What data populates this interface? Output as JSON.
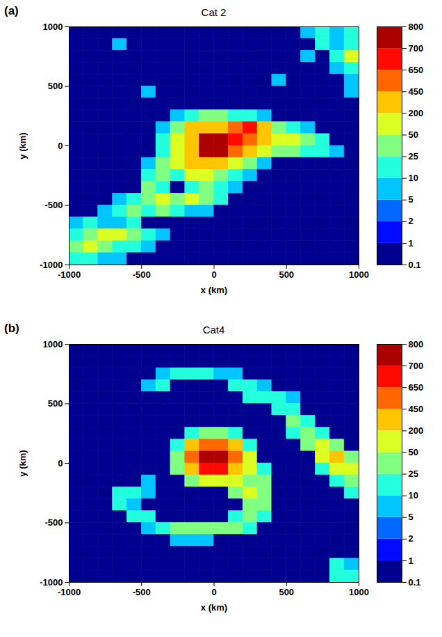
{
  "chart_data": [
    {
      "type": "heatmap",
      "panel": "(a)",
      "title": "Cat 2",
      "xlabel": "x (km)",
      "ylabel": "y (km)",
      "xlim": [
        -1000,
        1000
      ],
      "ylim": [
        -1000,
        1000
      ],
      "xticks": [
        -1000,
        -500,
        0,
        500,
        1000
      ],
      "yticks": [
        -1000,
        -500,
        0,
        500,
        1000
      ],
      "x": [
        -950,
        -850,
        -750,
        -650,
        -550,
        -450,
        -350,
        -250,
        -150,
        -50,
        50,
        150,
        250,
        350,
        450,
        550,
        650,
        750,
        850,
        950
      ],
      "y": [
        950,
        850,
        750,
        650,
        550,
        450,
        350,
        250,
        150,
        50,
        -50,
        -150,
        -250,
        -350,
        -450,
        -550,
        -650,
        -750,
        -850,
        -950
      ],
      "values": [
        [
          0.5,
          0.5,
          0.5,
          0.5,
          0.5,
          0.5,
          0.5,
          0.5,
          0.5,
          0.5,
          0.5,
          0.5,
          0.5,
          0.5,
          0.5,
          0.5,
          7,
          15,
          7,
          15
        ],
        [
          0.5,
          0.5,
          0.5,
          7,
          0.5,
          0.5,
          0.5,
          0.5,
          0.5,
          0.5,
          0.5,
          0.5,
          0.5,
          0.5,
          0.5,
          0.5,
          0.5,
          15,
          7,
          15
        ],
        [
          0.5,
          0.5,
          0.5,
          0.5,
          0.5,
          0.5,
          0.5,
          0.5,
          0.5,
          0.5,
          0.5,
          0.5,
          0.5,
          0.5,
          0.5,
          0.5,
          7,
          0.5,
          15,
          100
        ],
        [
          0.5,
          0.5,
          0.5,
          0.5,
          0.5,
          0.5,
          0.5,
          0.5,
          0.5,
          0.5,
          0.5,
          0.5,
          0.5,
          0.5,
          0.5,
          0.5,
          0.5,
          0.5,
          7,
          15
        ],
        [
          0.5,
          0.5,
          0.5,
          0.5,
          0.5,
          0.5,
          0.5,
          0.5,
          0.5,
          0.5,
          0.5,
          0.5,
          0.5,
          0.5,
          7,
          0.5,
          0.5,
          0.5,
          0.5,
          7
        ],
        [
          0.5,
          0.5,
          0.5,
          0.5,
          0.5,
          7,
          0.5,
          0.5,
          0.5,
          0.5,
          0.5,
          0.5,
          0.5,
          0.5,
          0.5,
          0.5,
          0.5,
          0.5,
          0.5,
          7
        ],
        [
          0.5,
          0.5,
          0.5,
          0.5,
          0.5,
          0.5,
          0.5,
          0.5,
          0.5,
          0.5,
          0.5,
          0.5,
          0.5,
          0.5,
          0.5,
          0.5,
          0.5,
          0.5,
          0.5,
          0.5
        ],
        [
          0.5,
          0.5,
          0.5,
          0.5,
          0.5,
          0.5,
          0.5,
          7,
          15,
          35,
          35,
          15,
          15,
          7,
          0.5,
          0.5,
          0.5,
          0.5,
          0.5,
          0.5
        ],
        [
          0.5,
          0.5,
          0.5,
          0.5,
          0.5,
          0.5,
          7,
          35,
          300,
          300,
          300,
          500,
          680,
          300,
          35,
          15,
          7,
          0.5,
          0.5,
          0.5
        ],
        [
          0.5,
          0.5,
          0.5,
          0.5,
          0.5,
          0.5,
          15,
          100,
          300,
          750,
          750,
          680,
          500,
          300,
          100,
          100,
          35,
          15,
          0.5,
          0.5
        ],
        [
          0.5,
          0.5,
          0.5,
          0.5,
          0.5,
          0.5,
          15,
          100,
          300,
          750,
          750,
          500,
          300,
          100,
          35,
          35,
          15,
          15,
          7,
          0.5
        ],
        [
          0.5,
          0.5,
          0.5,
          0.5,
          0.5,
          7,
          35,
          100,
          300,
          300,
          300,
          100,
          35,
          7,
          0.5,
          0.5,
          0.5,
          0.5,
          0.5,
          0.5
        ],
        [
          0.5,
          0.5,
          0.5,
          0.5,
          0.5,
          15,
          35,
          15,
          100,
          100,
          35,
          15,
          7,
          0.5,
          0.5,
          0.5,
          0.5,
          0.5,
          0.5,
          0.5
        ],
        [
          0.5,
          0.5,
          0.5,
          0.5,
          0.5,
          35,
          15,
          0.5,
          15,
          35,
          15,
          7,
          0.5,
          0.5,
          0.5,
          0.5,
          0.5,
          0.5,
          0.5,
          0.5
        ],
        [
          0.5,
          0.5,
          0.5,
          7,
          15,
          35,
          100,
          35,
          100,
          35,
          15,
          0.5,
          0.5,
          0.5,
          0.5,
          0.5,
          0.5,
          0.5,
          0.5,
          0.5
        ],
        [
          0.5,
          0.5,
          7,
          15,
          35,
          15,
          35,
          15,
          7,
          7,
          0.5,
          0.5,
          0.5,
          0.5,
          0.5,
          0.5,
          0.5,
          0.5,
          0.5,
          0.5
        ],
        [
          7,
          15,
          7,
          7,
          15,
          0.5,
          0.5,
          0.5,
          0.5,
          0.5,
          0.5,
          0.5,
          0.5,
          0.5,
          0.5,
          0.5,
          0.5,
          0.5,
          0.5,
          0.5
        ],
        [
          15,
          35,
          100,
          100,
          35,
          15,
          7,
          0.5,
          0.5,
          0.5,
          0.5,
          0.5,
          0.5,
          0.5,
          0.5,
          0.5,
          0.5,
          0.5,
          0.5,
          0.5
        ],
        [
          35,
          100,
          35,
          15,
          15,
          7,
          0.5,
          0.5,
          0.5,
          0.5,
          0.5,
          0.5,
          0.5,
          0.5,
          0.5,
          0.5,
          0.5,
          0.5,
          0.5,
          0.5
        ],
        [
          15,
          15,
          7,
          7,
          0.5,
          0.5,
          0.5,
          0.5,
          0.5,
          0.5,
          0.5,
          0.5,
          0.5,
          0.5,
          0.5,
          0.5,
          0.5,
          0.5,
          0.5,
          0.5
        ]
      ],
      "colorbar": {
        "range": [
          0.1,
          800
        ],
        "ticks": [
          0.1,
          1,
          2,
          5,
          10,
          25,
          50,
          200,
          450,
          650,
          700,
          800
        ],
        "colors": [
          "#00008f",
          "#000aff",
          "#0068ff",
          "#00c5ff",
          "#23ffdc",
          "#80ff80",
          "#dcff23",
          "#ffc500",
          "#ff6800",
          "#ff0a00",
          "#ad0000"
        ]
      }
    },
    {
      "type": "heatmap",
      "panel": "(b)",
      "title": "Cat4",
      "xlabel": "x (km)",
      "ylabel": "y (km)",
      "xlim": [
        -1000,
        1000
      ],
      "ylim": [
        -1000,
        1000
      ],
      "xticks": [
        -1000,
        -500,
        0,
        500,
        1000
      ],
      "yticks": [
        -1000,
        -500,
        0,
        500,
        1000
      ],
      "x": [
        -950,
        -850,
        -750,
        -650,
        -550,
        -450,
        -350,
        -250,
        -150,
        -50,
        50,
        150,
        250,
        350,
        450,
        550,
        650,
        750,
        850,
        950
      ],
      "y": [
        950,
        850,
        750,
        650,
        550,
        450,
        350,
        250,
        150,
        50,
        -50,
        -150,
        -250,
        -350,
        -450,
        -550,
        -650,
        -750,
        -850,
        -950
      ],
      "values": [
        [
          0.5,
          0.5,
          0.5,
          0.5,
          0.5,
          0.5,
          0.5,
          0.5,
          0.5,
          0.5,
          0.5,
          0.5,
          0.5,
          0.5,
          0.5,
          0.5,
          0.5,
          0.5,
          0.5,
          0.5
        ],
        [
          0.5,
          0.5,
          0.5,
          0.5,
          0.5,
          0.5,
          0.5,
          0.5,
          0.5,
          0.5,
          0.5,
          0.5,
          0.5,
          0.5,
          0.5,
          0.5,
          0.5,
          0.5,
          0.5,
          0.5
        ],
        [
          0.5,
          0.5,
          0.5,
          0.5,
          0.5,
          0.5,
          7,
          15,
          15,
          15,
          7,
          7,
          0.5,
          0.5,
          0.5,
          0.5,
          0.5,
          0.5,
          0.5,
          0.5
        ],
        [
          0.5,
          0.5,
          0.5,
          0.5,
          0.5,
          7,
          15,
          0.5,
          0.5,
          0.5,
          0.5,
          15,
          15,
          7,
          0.5,
          0.5,
          0.5,
          0.5,
          0.5,
          0.5
        ],
        [
          0.5,
          0.5,
          0.5,
          0.5,
          0.5,
          0.5,
          0.5,
          0.5,
          0.5,
          0.5,
          0.5,
          0.5,
          15,
          15,
          15,
          7,
          0.5,
          0.5,
          0.5,
          0.5
        ],
        [
          0.5,
          0.5,
          0.5,
          0.5,
          0.5,
          0.5,
          0.5,
          0.5,
          0.5,
          0.5,
          0.5,
          0.5,
          0.5,
          0.5,
          15,
          15,
          0.5,
          0.5,
          0.5,
          0.5
        ],
        [
          0.5,
          0.5,
          0.5,
          0.5,
          0.5,
          0.5,
          0.5,
          0.5,
          0.5,
          0.5,
          0.5,
          0.5,
          0.5,
          0.5,
          0.5,
          35,
          15,
          0.5,
          0.5,
          0.5
        ],
        [
          0.5,
          0.5,
          0.5,
          0.5,
          0.5,
          0.5,
          0.5,
          0.5,
          15,
          35,
          35,
          15,
          0.5,
          0.5,
          0.5,
          15,
          35,
          15,
          0.5,
          0.5
        ],
        [
          0.5,
          0.5,
          0.5,
          0.5,
          0.5,
          0.5,
          0.5,
          15,
          300,
          500,
          500,
          300,
          15,
          0.5,
          0.5,
          0.5,
          35,
          100,
          35,
          0.5
        ],
        [
          0.5,
          0.5,
          0.5,
          0.5,
          0.5,
          0.5,
          0.5,
          35,
          500,
          750,
          750,
          500,
          100,
          0.5,
          0.5,
          0.5,
          0.5,
          100,
          300,
          35
        ],
        [
          0.5,
          0.5,
          0.5,
          0.5,
          0.5,
          0.5,
          0.5,
          35,
          300,
          680,
          680,
          300,
          100,
          15,
          0.5,
          0.5,
          0.5,
          15,
          100,
          100
        ],
        [
          0.5,
          0.5,
          0.5,
          0.5,
          0.5,
          7,
          0.5,
          0.5,
          35,
          100,
          100,
          100,
          35,
          35,
          0.5,
          0.5,
          0.5,
          0.5,
          15,
          35
        ],
        [
          0.5,
          0.5,
          0.5,
          15,
          15,
          7,
          0.5,
          0.5,
          0.5,
          0.5,
          0.5,
          35,
          100,
          35,
          0.5,
          0.5,
          0.5,
          0.5,
          0.5,
          15
        ],
        [
          0.5,
          0.5,
          0.5,
          15,
          7,
          0.5,
          0.5,
          0.5,
          0.5,
          0.5,
          0.5,
          0.5,
          35,
          35,
          0.5,
          0.5,
          0.5,
          0.5,
          0.5,
          0.5
        ],
        [
          0.5,
          0.5,
          0.5,
          0.5,
          15,
          15,
          0.5,
          0.5,
          0.5,
          0.5,
          0.5,
          15,
          35,
          15,
          0.5,
          0.5,
          0.5,
          0.5,
          0.5,
          0.5
        ],
        [
          0.5,
          0.5,
          0.5,
          0.5,
          0.5,
          7,
          15,
          35,
          35,
          35,
          35,
          35,
          15,
          0.5,
          0.5,
          0.5,
          0.5,
          0.5,
          0.5,
          0.5
        ],
        [
          0.5,
          0.5,
          0.5,
          0.5,
          0.5,
          0.5,
          0.5,
          7,
          7,
          7,
          0.5,
          0.5,
          0.5,
          0.5,
          0.5,
          0.5,
          0.5,
          0.5,
          0.5,
          0.5
        ],
        [
          0.5,
          0.5,
          0.5,
          0.5,
          0.5,
          0.5,
          0.5,
          0.5,
          0.5,
          0.5,
          0.5,
          0.5,
          0.5,
          0.5,
          0.5,
          0.5,
          0.5,
          0.5,
          0.5,
          0.5
        ],
        [
          0.5,
          0.5,
          0.5,
          0.5,
          0.5,
          0.5,
          0.5,
          0.5,
          0.5,
          0.5,
          0.5,
          0.5,
          0.5,
          0.5,
          0.5,
          0.5,
          0.5,
          0.5,
          15,
          7
        ],
        [
          0.5,
          0.5,
          0.5,
          0.5,
          0.5,
          0.5,
          0.5,
          0.5,
          0.5,
          0.5,
          0.5,
          0.5,
          0.5,
          0.5,
          0.5,
          0.5,
          0.5,
          0.5,
          15,
          15
        ]
      ],
      "colorbar": {
        "range": [
          0.1,
          800
        ],
        "ticks": [
          0.1,
          1,
          2,
          5,
          10,
          25,
          50,
          200,
          450,
          650,
          700,
          800
        ],
        "colors": [
          "#00008f",
          "#000aff",
          "#0068ff",
          "#00c5ff",
          "#23ffdc",
          "#80ff80",
          "#dcff23",
          "#ffc500",
          "#ff6800",
          "#ff0a00",
          "#ad0000"
        ]
      }
    }
  ]
}
